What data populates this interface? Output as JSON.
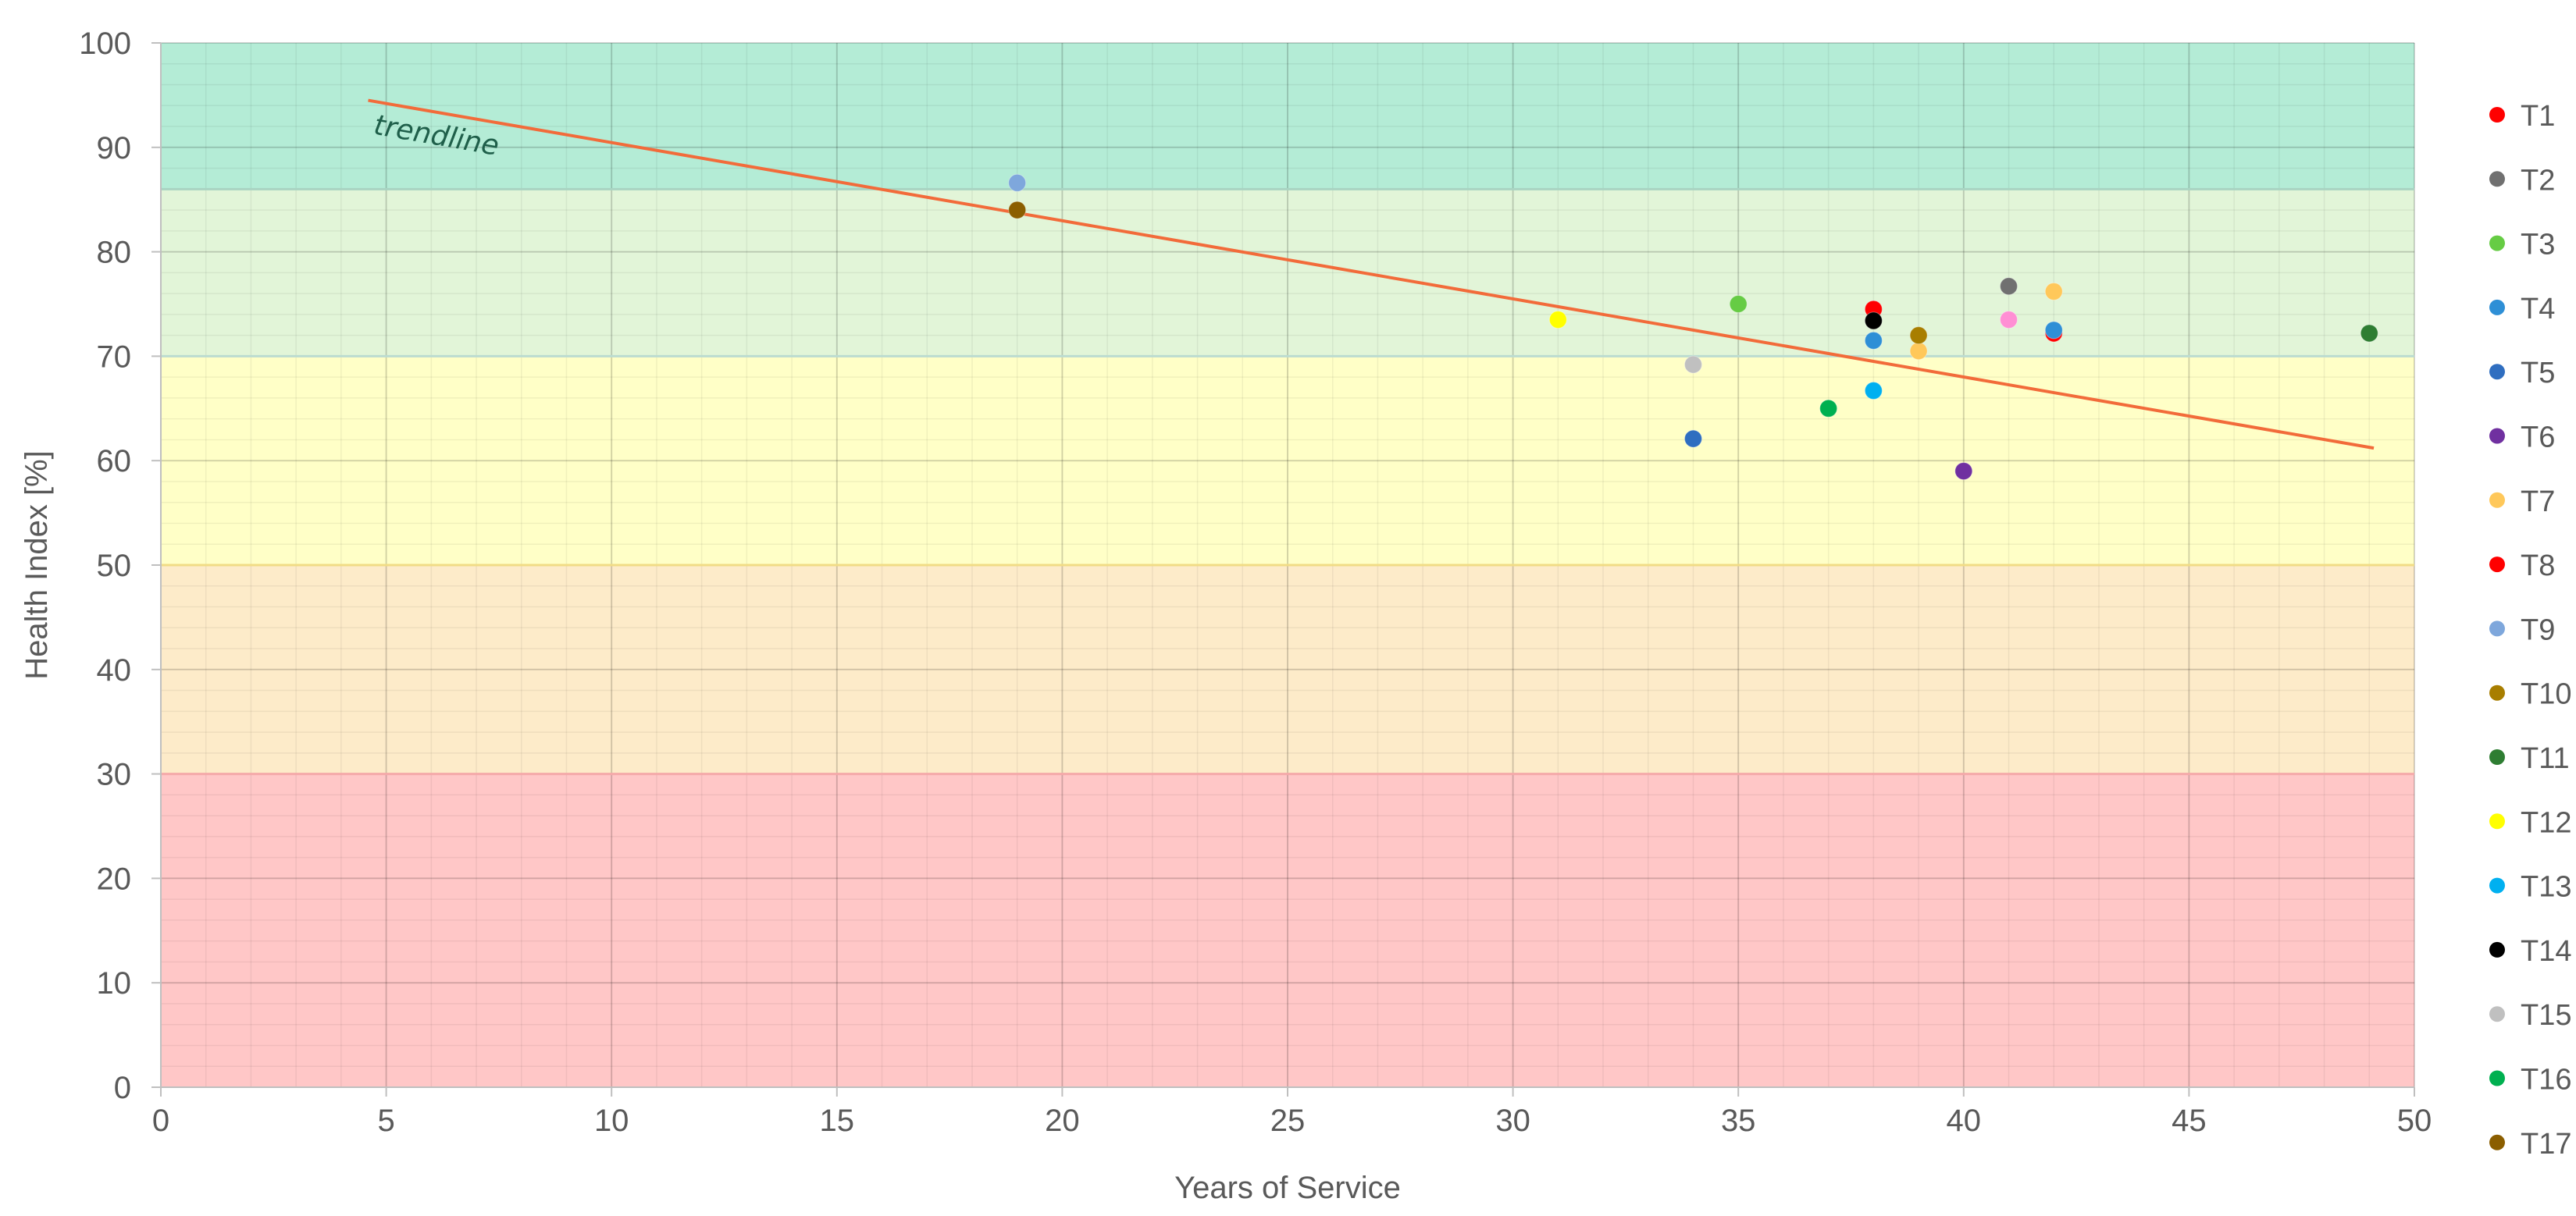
{
  "chart_data": {
    "type": "scatter",
    "title": "",
    "xlabel": "Years of Service",
    "ylabel": "Health Index [%]",
    "xlim": [
      0,
      50
    ],
    "ylim": [
      0,
      100
    ],
    "x_ticks": [
      0,
      5,
      10,
      15,
      20,
      25,
      30,
      35,
      40,
      45,
      50
    ],
    "y_ticks": [
      0,
      10,
      20,
      30,
      40,
      50,
      60,
      70,
      80,
      90,
      100
    ],
    "grid": true,
    "minor_grid": true,
    "legend_position": "right",
    "bands": [
      {
        "from": 0,
        "to": 30,
        "color": "#ffc7c7"
      },
      {
        "from": 30,
        "to": 50,
        "color": "#fdebc9"
      },
      {
        "from": 50,
        "to": 70,
        "color": "#ffffc7"
      },
      {
        "from": 70,
        "to": 86,
        "color": "#e2f5d8"
      },
      {
        "from": 86,
        "to": 100,
        "color": "#b4ecd6"
      }
    ],
    "band_lines": [
      {
        "y": 30,
        "color": "#f4a9a9"
      },
      {
        "y": 50,
        "color": "#f1dc86"
      },
      {
        "y": 70,
        "color": "#bcdcd0"
      },
      {
        "y": 86,
        "color": "#a9d4c2"
      }
    ],
    "trendline": {
      "label": "trendline",
      "color": "#f26b3a",
      "x": [
        4.6,
        49.1
      ],
      "y": [
        94.5,
        61.2
      ],
      "label_at": [
        4.7,
        91.3
      ]
    },
    "series": [
      {
        "name": "T1",
        "color": "#ff0000",
        "points": [
          [
            42,
            72.2
          ]
        ]
      },
      {
        "name": "T2",
        "color": "#707070",
        "points": [
          [
            41,
            76.7
          ]
        ]
      },
      {
        "name": "T3",
        "color": "#66cc44",
        "points": [
          [
            35,
            75.0
          ]
        ]
      },
      {
        "name": "T4",
        "color": "#2e8fd6",
        "points": [
          [
            38,
            71.5
          ],
          [
            42,
            72.5
          ]
        ]
      },
      {
        "name": "T5",
        "color": "#2f6ec0",
        "points": [
          [
            34,
            62.1
          ]
        ]
      },
      {
        "name": "T6",
        "color": "#7030a0",
        "points": [
          [
            40,
            59.0
          ]
        ]
      },
      {
        "name": "T7",
        "color": "#ffc85a",
        "points": [
          [
            42,
            76.2
          ],
          [
            39,
            70.5
          ]
        ]
      },
      {
        "name": "T8",
        "color": "#ff0000",
        "points": [
          [
            38,
            74.5
          ]
        ]
      },
      {
        "name": "T9",
        "color": "#7ea7dc",
        "points": [
          [
            19,
            86.6
          ]
        ]
      },
      {
        "name": "T10",
        "color": "#a87e00",
        "points": [
          [
            39,
            72.0
          ]
        ]
      },
      {
        "name": "T11",
        "color": "#2e7d32",
        "points": [
          [
            49,
            72.2
          ]
        ]
      },
      {
        "name": "T12",
        "color": "#ffff00",
        "points": [
          [
            31,
            73.5
          ]
        ]
      },
      {
        "name": "T13",
        "color": "#00b0f0",
        "points": [
          [
            38,
            66.7
          ]
        ]
      },
      {
        "name": "T14",
        "color": "#000000",
        "points": [
          [
            38,
            73.4
          ]
        ]
      },
      {
        "name": "T15",
        "color": "#c0c0c0",
        "points": [
          [
            34,
            69.2
          ]
        ]
      },
      {
        "name": "T16",
        "color": "#00b050",
        "points": [
          [
            37,
            65.0
          ]
        ]
      },
      {
        "name": "T17",
        "color": "#8b5e00",
        "points": [
          [
            19,
            84.0
          ]
        ]
      },
      {
        "name": "",
        "color": "#ff8fd4",
        "points": [
          [
            41,
            73.5
          ]
        ]
      }
    ]
  }
}
